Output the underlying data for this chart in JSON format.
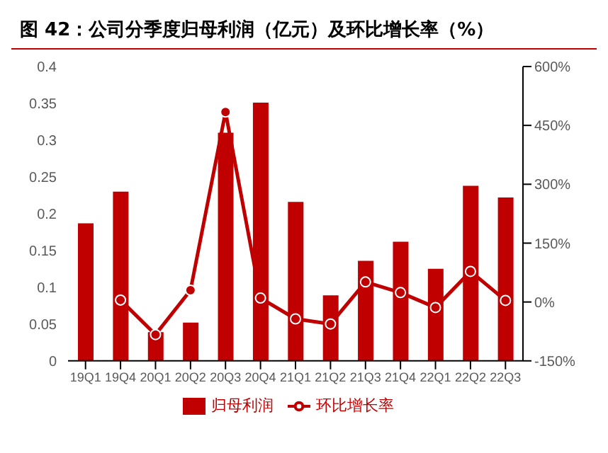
{
  "chart_data": {
    "type": "bar",
    "title": "图 42：公司分季度归母利润（亿元）及环比增长率（%）",
    "categories": [
      "19Q1",
      "19Q4",
      "20Q1",
      "20Q2",
      "20Q3",
      "20Q4",
      "21Q1",
      "21Q2",
      "21Q3",
      "21Q4",
      "22Q1",
      "22Q2",
      "22Q3"
    ],
    "series": [
      {
        "name": "归母利润",
        "color": "#c00000",
        "values": [
          0.187,
          0.23,
          0.039,
          0.052,
          0.31,
          0.351,
          0.216,
          0.089,
          0.136,
          0.162,
          0.125,
          0.238,
          0.222
        ]
      },
      {
        "name": "环比增长率",
        "type": "line",
        "axis": "y2",
        "color": "#c00000",
        "marker": "circle",
        "values": [
          null,
          5,
          -83,
          30,
          484,
          10,
          -43,
          -56,
          51,
          24,
          -14,
          78,
          4
        ]
      }
    ],
    "ylim": [
      0,
      0.4
    ],
    "yticks": [
      0,
      0.05,
      0.1,
      0.15,
      0.2,
      0.25,
      0.3,
      0.35,
      0.4
    ],
    "y2lim": [
      -150,
      600
    ],
    "y2ticks": [
      {
        "value": -150,
        "label": "-150%"
      },
      {
        "value": 0,
        "label": "0%"
      },
      {
        "value": 150,
        "label": "150%"
      },
      {
        "value": 300,
        "label": "300%"
      },
      {
        "value": 450,
        "label": "450%"
      },
      {
        "value": 600,
        "label": "600%"
      }
    ],
    "grid": false,
    "legend": "bottom"
  }
}
